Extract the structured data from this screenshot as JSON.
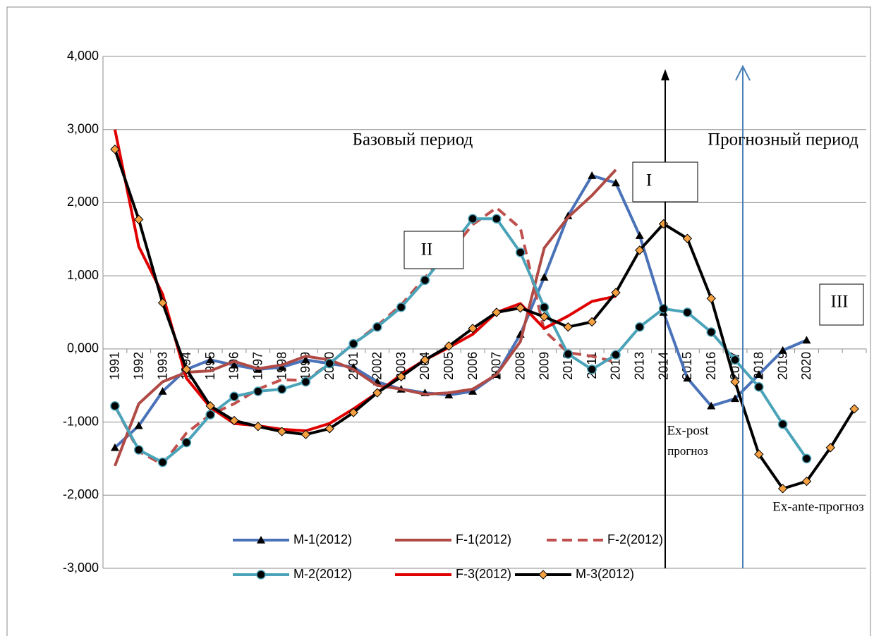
{
  "chart_data": {
    "type": "line",
    "categories": [
      "1991",
      "1992",
      "1993",
      "1994",
      "1995",
      "1996",
      "1997",
      "1998",
      "1999",
      "2000",
      "2001",
      "2002",
      "2003",
      "2004",
      "2005",
      "2006",
      "2007",
      "2008",
      "2009",
      "2010",
      "2011",
      "2012",
      "2013",
      "2014",
      "2015",
      "2016",
      "2017",
      "2018",
      "2019",
      "2020",
      null,
      null
    ],
    "ylim": [
      -3,
      4
    ],
    "yticks": [
      {
        "value": -3,
        "label": "-3,000"
      },
      {
        "value": -2,
        "label": "-2,000"
      },
      {
        "value": -1,
        "label": "-1,000"
      },
      {
        "value": 0,
        "label": "0,000"
      },
      {
        "value": 1,
        "label": "1,000"
      },
      {
        "value": 2,
        "label": "2,000"
      },
      {
        "value": 3,
        "label": "3,000"
      },
      {
        "value": 4,
        "label": "4,000"
      }
    ],
    "grid": true,
    "legend": "bottom",
    "annotations": [
      "Базовый период",
      "Прогнозный период",
      "I",
      "II",
      "III",
      "Ex-post",
      "прогноз",
      "Ex-ante-прогноз"
    ],
    "series": [
      {
        "name": "M-1(2012)",
        "color": "#4a72b8",
        "marker": "triangle",
        "marker_color": "#000000",
        "values": [
          -1.35,
          -1.05,
          -0.58,
          -0.28,
          -0.15,
          -0.22,
          -0.28,
          -0.25,
          -0.15,
          -0.2,
          -0.25,
          -0.45,
          -0.55,
          -0.6,
          -0.63,
          -0.58,
          -0.35,
          0.2,
          0.98,
          1.82,
          2.37,
          2.27,
          1.55,
          0.5,
          -0.4,
          -0.78,
          -0.68,
          -0.35,
          -0.02,
          0.12,
          null,
          null
        ]
      },
      {
        "name": "F-1(2012)",
        "color": "#b04a45",
        "marker": null,
        "values": [
          -1.6,
          -0.75,
          -0.45,
          -0.32,
          -0.3,
          -0.17,
          -0.27,
          -0.22,
          -0.1,
          -0.15,
          -0.28,
          -0.5,
          -0.55,
          -0.62,
          -0.6,
          -0.55,
          -0.35,
          0.1,
          1.38,
          1.8,
          2.1,
          2.45,
          null,
          null,
          null,
          null,
          null,
          null,
          null,
          null,
          null,
          null
        ]
      },
      {
        "name": "F-2(2012)",
        "color": "#c0504d",
        "marker": null,
        "dash": true,
        "values": [
          -0.78,
          -1.4,
          -1.58,
          -1.15,
          -0.9,
          -0.75,
          -0.55,
          -0.42,
          -0.43,
          -0.2,
          0.07,
          0.32,
          0.6,
          0.98,
          1.3,
          1.7,
          1.93,
          1.65,
          0.25,
          -0.05,
          -0.1,
          -0.18,
          null,
          null,
          null,
          null,
          null,
          null,
          null,
          null,
          null,
          null
        ]
      },
      {
        "name": "M-2(2012)",
        "color": "#4aa3b8",
        "marker": "circle",
        "marker_color": "#000000",
        "values": [
          -0.78,
          -1.38,
          -1.55,
          -1.28,
          -0.9,
          -0.65,
          -0.58,
          -0.55,
          -0.45,
          -0.2,
          0.07,
          0.3,
          0.57,
          0.94,
          1.35,
          1.78,
          1.78,
          1.32,
          0.57,
          -0.07,
          -0.28,
          -0.08,
          0.3,
          0.55,
          0.5,
          0.23,
          -0.15,
          -0.52,
          -1.03,
          -1.5,
          null,
          null
        ]
      },
      {
        "name": "F-3(2012)",
        "color": "#e00000",
        "marker": null,
        "values": [
          3.0,
          1.4,
          0.75,
          -0.4,
          -0.8,
          -1.02,
          -1.05,
          -1.1,
          -1.12,
          -1.02,
          -0.82,
          -0.6,
          -0.35,
          -0.15,
          0.02,
          0.2,
          0.5,
          0.62,
          0.28,
          0.45,
          0.65,
          0.72,
          null,
          null,
          null,
          null,
          null,
          null,
          null,
          null,
          null,
          null
        ]
      },
      {
        "name": "M-3(2012)",
        "color": "#000000",
        "marker": "diamond",
        "marker_color": "#f5a142",
        "values": [
          2.73,
          1.77,
          0.63,
          -0.28,
          -0.78,
          -0.98,
          -1.06,
          -1.13,
          -1.17,
          -1.09,
          -0.87,
          -0.6,
          -0.38,
          -0.15,
          0.04,
          0.28,
          0.5,
          0.56,
          0.44,
          0.3,
          0.37,
          0.77,
          1.35,
          1.71,
          1.51,
          0.69,
          -0.45,
          -1.44,
          -1.91,
          -1.81,
          -1.35,
          -0.82
        ]
      }
    ]
  }
}
